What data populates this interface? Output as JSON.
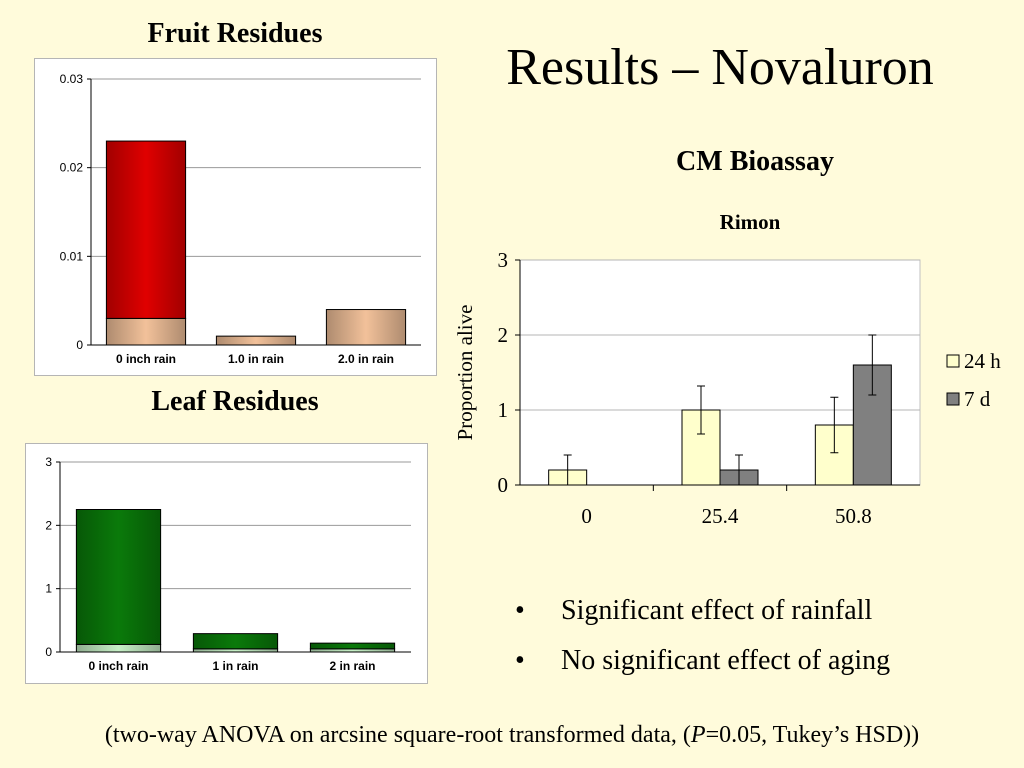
{
  "slide": {
    "title": "Results – Novaluron",
    "fruit_heading": "Fruit Residues",
    "leaf_heading": "Leaf Residues",
    "cm_heading": "CM Bioassay",
    "bullets": [
      "Significant effect of rainfall",
      "No significant effect of aging"
    ],
    "footnote_pre": "(two-way ANOVA on arcsine square-root transformed data, (",
    "footnote_italic": "P",
    "footnote_post": "=0.05, Tukey’s HSD))"
  },
  "colors": {
    "background": "#fffbdb",
    "fruit_top": "#e00000",
    "fruit_base": "#f2c19a",
    "leaf_top": "#0a7a0a",
    "leaf_base": "#c6efc6",
    "h24": "#ffffcc",
    "d7": "#808080"
  },
  "chart_data": [
    {
      "type": "bar",
      "stacked": true,
      "categories": [
        "0 inch rain",
        "1.0 in rain",
        "2.0 in rain"
      ],
      "series": [
        {
          "values": [
            0.003,
            0.001,
            0.004
          ]
        },
        {
          "values": [
            0.02,
            0.0,
            0.0
          ]
        }
      ],
      "yticks": [
        "0",
        "0.01",
        "0.02",
        "0.03"
      ],
      "ylim": [
        0,
        0.03
      ],
      "grid": true,
      "legend": "none"
    },
    {
      "type": "bar",
      "stacked": true,
      "categories": [
        "0 inch rain",
        "1 in rain",
        "2 in rain"
      ],
      "series": [
        {
          "values": [
            0.12,
            0.05,
            0.05
          ]
        },
        {
          "values": [
            2.13,
            0.24,
            0.09
          ]
        }
      ],
      "yticks": [
        "0",
        "1",
        "2",
        "3"
      ],
      "ylim": [
        0,
        3
      ],
      "grid": true,
      "legend": "none"
    },
    {
      "type": "bar",
      "title": "Rimon",
      "ylabel": "Proportion alive",
      "categories": [
        "0",
        "25.4",
        "50.8"
      ],
      "series": [
        {
          "name": "24 h",
          "values": [
            0.2,
            1.0,
            0.8
          ],
          "errors": [
            0.2,
            0.32,
            0.37
          ]
        },
        {
          "name": "7 d",
          "values": [
            0.0,
            0.2,
            1.6
          ],
          "errors": [
            0.0,
            0.2,
            0.4
          ]
        }
      ],
      "yticks": [
        "0",
        "1",
        "2",
        "3"
      ],
      "ylim": [
        0,
        3
      ],
      "grid": true,
      "legend": "right"
    }
  ]
}
